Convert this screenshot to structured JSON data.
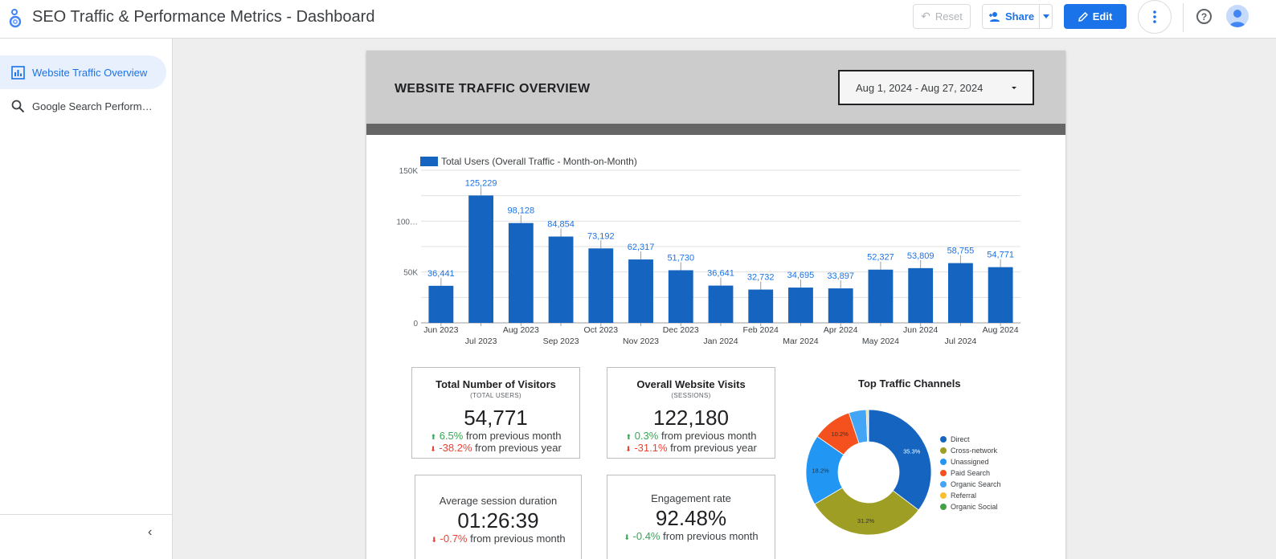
{
  "header": {
    "title": "SEO Traffic & Performance Metrics - Dashboard",
    "reset_label": "Reset",
    "share_label": "Share",
    "edit_label": "Edit",
    "help_label": "?"
  },
  "sidebar": {
    "items": [
      {
        "label": "Website Traffic Overview",
        "icon": "bar-chart-icon",
        "active": true
      },
      {
        "label": "Google Search Performance",
        "icon": "search-icon",
        "active": false
      }
    ],
    "collapse_label": "‹"
  },
  "report": {
    "title": "WEBSITE TRAFFIC OVERVIEW",
    "date_range": "Aug 1, 2024 - Aug 27, 2024"
  },
  "chart_data": [
    {
      "type": "bar",
      "legend": "Total Users (Overall Traffic - Month-on-Month)",
      "legend_placement": "top-left",
      "y_ticks": [
        "0",
        "50K",
        "100…",
        "150K"
      ],
      "ylim": [
        0,
        150000
      ],
      "grid": true,
      "color": "#1565c0",
      "categories": [
        "Jun 2023",
        "Jul 2023",
        "Aug 2023",
        "Sep 2023",
        "Oct 2023",
        "Nov 2023",
        "Dec 2023",
        "Jan 2024",
        "Feb 2024",
        "Mar 2024",
        "Apr 2024",
        "May 2024",
        "Jun 2024",
        "Jul 2024",
        "Aug 2024"
      ],
      "values": [
        36441,
        125229,
        98128,
        84854,
        73192,
        62317,
        51730,
        36641,
        32732,
        34695,
        33897,
        52327,
        53809,
        58755,
        54771
      ],
      "value_labels": [
        "36,441",
        "125,229",
        "98,128",
        "84,854",
        "73,192",
        "62,317",
        "51,730",
        "36,641",
        "32,732",
        "34,695",
        "33,897",
        "52,327",
        "53,809",
        "58,755",
        "54,771"
      ]
    },
    {
      "type": "pie",
      "title": "Top Traffic Channels",
      "donut": true,
      "legend_placement": "right",
      "slices": [
        {
          "name": "Direct",
          "value": 35.3,
          "label": "35.3%",
          "color": "#1565c0"
        },
        {
          "name": "Cross-network",
          "value": 31.2,
          "label": "31.2%",
          "color": "#9e9d24"
        },
        {
          "name": "Unassigned",
          "value": 18.2,
          "label": "18.2%",
          "color": "#2196f3"
        },
        {
          "name": "Paid Search",
          "value": 10.2,
          "label": "10.2%",
          "color": "#f4511e"
        },
        {
          "name": "Organic Search",
          "value": 4.5,
          "label": "",
          "color": "#42a5f5"
        },
        {
          "name": "Referral",
          "value": 0.4,
          "label": "",
          "color": "#fbc02d"
        },
        {
          "name": "Organic Social",
          "value": 0.2,
          "label": "",
          "color": "#43a047"
        }
      ]
    }
  ],
  "metrics": {
    "visitors": {
      "title": "Total Number of Visitors",
      "subtitle": "(TOTAL USERS)",
      "value": "54,771",
      "delta1_value": "6.5%",
      "delta1_text": "from previous month",
      "delta2_value": "-38.2%",
      "delta2_text": "from previous year"
    },
    "visits": {
      "title": "Overall Website Visits",
      "subtitle": "(SESSIONS)",
      "value": "122,180",
      "delta1_value": "0.3%",
      "delta1_text": "from previous month",
      "delta2_value": "-31.1%",
      "delta2_text": "from previous year"
    },
    "duration": {
      "title": "Average session duration",
      "value": "01:26:39",
      "delta1_value": "-0.7%",
      "delta1_text": "from previous month"
    },
    "engagement": {
      "title": "Engagement rate",
      "value": "92.48%",
      "delta1_value": "-0.4%",
      "delta1_text": "from previous month"
    }
  },
  "colors": {
    "accent": "#1a73e8",
    "up": "#34a853",
    "down": "#ea4335"
  }
}
